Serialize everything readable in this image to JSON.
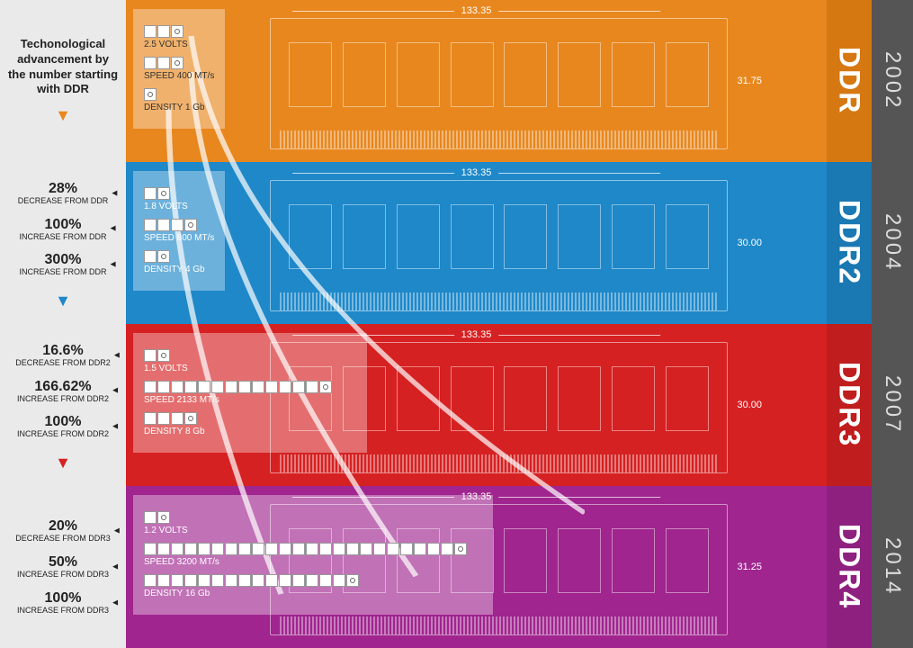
{
  "title": "Techonological advancement by the number starting with DDR",
  "colors": {
    "ddr1": "#e8871e",
    "ddr1_dark": "#d67812",
    "ddr2": "#1e88c9",
    "ddr2_dark": "#1a78b3",
    "ddr3": "#d62122",
    "ddr3_dark": "#c01d1e",
    "ddr4": "#a0258f",
    "ddr4_dark": "#8e2180",
    "year_bg": "#555555",
    "left_bg": "#eaeaea",
    "overlay": "rgba(255,255,255,0.35)"
  },
  "generations": [
    {
      "name": "DDR",
      "year": "2002",
      "width_mm": "133.35",
      "height_mm": "31.75",
      "chevron_color": "#e8871e",
      "specs": {
        "volts": {
          "value": "2.5 VOLTS",
          "boxes": 3,
          "marked": 3
        },
        "speed": {
          "value": "SPEED 400 MT/s",
          "boxes": 3,
          "marked": 3
        },
        "density": {
          "value": "DENSITY 1 Gb",
          "boxes": 1,
          "marked": 1
        }
      },
      "stats": []
    },
    {
      "name": "DDR2",
      "year": "2004",
      "width_mm": "133.35",
      "height_mm": "30.00",
      "chevron_color": "#1e88c9",
      "specs": {
        "volts": {
          "value": "1.8 VOLTS",
          "boxes": 2,
          "marked": 2
        },
        "speed": {
          "value": "SPEED 800 MT/s",
          "boxes": 4,
          "marked": 4
        },
        "density": {
          "value": "DENSITY 4 Gb",
          "boxes": 2,
          "marked": 2
        }
      },
      "stats": [
        {
          "pct": "28%",
          "label": "DECREASE FROM DDR"
        },
        {
          "pct": "100%",
          "label": "INCREASE FROM DDR"
        },
        {
          "pct": "300%",
          "label": "INCREASE FROM DDR"
        }
      ]
    },
    {
      "name": "DDR3",
      "year": "2007",
      "width_mm": "133.35",
      "height_mm": "30.00",
      "chevron_color": "#d62122",
      "specs": {
        "volts": {
          "value": "1.5 VOLTS",
          "boxes": 2,
          "marked": 1
        },
        "speed": {
          "value": "SPEED 2133 MT/s",
          "boxes": 14,
          "marked": 14
        },
        "density": {
          "value": "DENSITY 8 Gb",
          "boxes": 4,
          "marked": 4
        }
      },
      "stats": [
        {
          "pct": "16.6%",
          "label": "DECREASE FROM DDR2"
        },
        {
          "pct": "166.62%",
          "label": "INCREASE FROM DDR2"
        },
        {
          "pct": "100%",
          "label": "INCREASE FROM DDR2"
        }
      ]
    },
    {
      "name": "DDR4",
      "year": "2014",
      "width_mm": "133.35",
      "height_mm": "31.25",
      "chevron_color": "#a0258f",
      "specs": {
        "volts": {
          "value": "1.2 VOLTS",
          "boxes": 2,
          "marked": 2
        },
        "speed": {
          "value": "SPEED 3200 MT/s",
          "boxes": 24,
          "marked": 24
        },
        "density": {
          "value": "DENSITY 16 Gb",
          "boxes": 16,
          "marked": 16
        }
      },
      "stats": [
        {
          "pct": "20%",
          "label": "DECREASE FROM DDR3"
        },
        {
          "pct": "50%",
          "label": "INCREASE FROM DDR3"
        },
        {
          "pct": "100%",
          "label": "INCREASE FROM DDR3"
        }
      ]
    }
  ]
}
